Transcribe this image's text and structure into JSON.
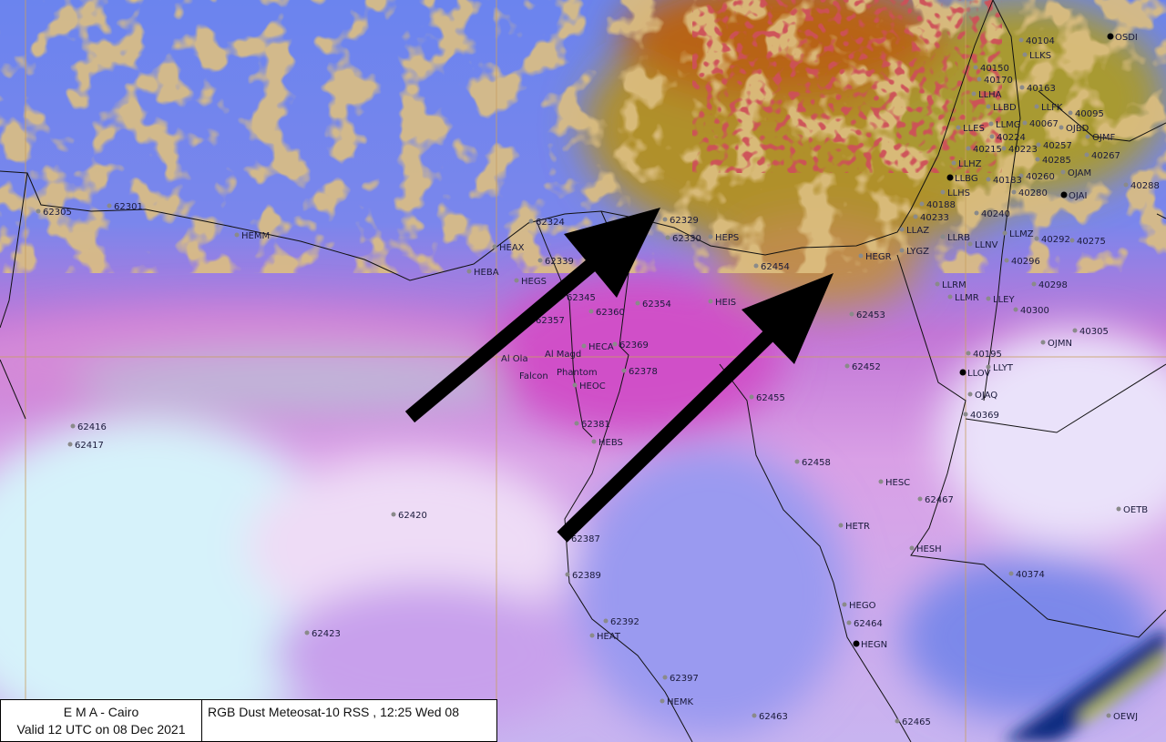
{
  "image": {
    "product_title": "RGB Dust Meteosat-10 RSS , 12:25  Wed 08",
    "issuer": "E M A  -  Cairo",
    "valid_time": "Valid 12 UTC on 08 Dec 2021"
  },
  "colors": {
    "clear_sky_blue": "#6f86ee",
    "dust_magenta": "#d873d8",
    "cloud_orange": "#b8863a",
    "thick_cloud_red": "#a01818",
    "desert_light": "#d8e8f8",
    "arrow": "#000000",
    "gridline": "#c8a060"
  },
  "annotations": [
    {
      "type": "arrow",
      "meaning": "dust flow direction"
    },
    {
      "type": "arrow",
      "meaning": "dust flow direction"
    }
  ],
  "stations": [
    {
      "label": "62305",
      "marker": "gray-dot"
    },
    {
      "label": "62301",
      "marker": "gray-dot"
    },
    {
      "label": "HEMM",
      "marker": "gray-dot"
    },
    {
      "label": "HEAX",
      "marker": "gray-dot"
    },
    {
      "label": "HEBA",
      "marker": "gray-dot"
    },
    {
      "label": "62324",
      "marker": "gray-dot"
    },
    {
      "label": "62329",
      "marker": "gray-dot"
    },
    {
      "label": "62330",
      "marker": "gray-dot"
    },
    {
      "label": "HEPS",
      "marker": "gray-dot"
    },
    {
      "label": "62454",
      "marker": "gray-dot"
    },
    {
      "label": "HEIS",
      "marker": "gray-dot"
    },
    {
      "label": "62339",
      "marker": "gray-dot"
    },
    {
      "label": "HEGS",
      "marker": "gray-dot"
    },
    {
      "label": "62345",
      "marker": "gray-dot"
    },
    {
      "label": "62360",
      "marker": "gray-dot"
    },
    {
      "label": "62354",
      "marker": "gray-dot"
    },
    {
      "label": "62357",
      "marker": "gray-dot"
    },
    {
      "label": "Al Ola",
      "marker": "none"
    },
    {
      "label": "Al Magd",
      "marker": "none"
    },
    {
      "label": "Falcon",
      "marker": "none"
    },
    {
      "label": "Phantom",
      "marker": "none"
    },
    {
      "label": "HEOC",
      "marker": "gray-dot"
    },
    {
      "label": "HECA",
      "marker": "gray-dot"
    },
    {
      "label": "62369",
      "marker": "gray-dot"
    },
    {
      "label": "62378",
      "marker": "gray-dot"
    },
    {
      "label": "62381",
      "marker": "gray-dot"
    },
    {
      "label": "HEBS",
      "marker": "gray-dot"
    },
    {
      "label": "62455",
      "marker": "gray-dot"
    },
    {
      "label": "62452",
      "marker": "gray-dot"
    },
    {
      "label": "62453",
      "marker": "gray-dot"
    },
    {
      "label": "HEGR",
      "marker": "gray-dot"
    },
    {
      "label": "62458",
      "marker": "gray-dot"
    },
    {
      "label": "HESC",
      "marker": "gray-dot"
    },
    {
      "label": "62467",
      "marker": "gray-dot"
    },
    {
      "label": "HETR",
      "marker": "gray-dot"
    },
    {
      "label": "HESH",
      "marker": "gray-dot"
    },
    {
      "label": "OETB",
      "marker": "gray-dot"
    },
    {
      "label": "40374",
      "marker": "gray-dot"
    },
    {
      "label": "HEGO",
      "marker": "gray-dot"
    },
    {
      "label": "62464",
      "marker": "gray-dot"
    },
    {
      "label": "HEGN",
      "marker": "black-dot"
    },
    {
      "label": "62392",
      "marker": "gray-dot"
    },
    {
      "label": "HEAT",
      "marker": "gray-dot"
    },
    {
      "label": "62397",
      "marker": "gray-dot"
    },
    {
      "label": "HEMK",
      "marker": "gray-dot"
    },
    {
      "label": "62463",
      "marker": "gray-dot"
    },
    {
      "label": "62465",
      "marker": "gray-dot"
    },
    {
      "label": "OEWJ",
      "marker": "gray-dot"
    },
    {
      "label": "62387",
      "marker": "gray-dot"
    },
    {
      "label": "62389",
      "marker": "gray-dot"
    },
    {
      "label": "62420",
      "marker": "gray-dot"
    },
    {
      "label": "62423",
      "marker": "gray-dot"
    },
    {
      "label": "62416",
      "marker": "gray-dot"
    },
    {
      "label": "62417",
      "marker": "gray-dot"
    },
    {
      "label": "40104",
      "marker": "gray-dot"
    },
    {
      "label": "LLKS",
      "marker": "gray-dot"
    },
    {
      "label": "OSDI",
      "marker": "black-dot"
    },
    {
      "label": "40150",
      "marker": "gray-dot"
    },
    {
      "label": "40163",
      "marker": "gray-dot"
    },
    {
      "label": "LLHA",
      "marker": "gray-dot"
    },
    {
      "label": "LLFK",
      "marker": "gray-dot"
    },
    {
      "label": "40170",
      "marker": "gray-dot"
    },
    {
      "label": "LLBD",
      "marker": "gray-dot"
    },
    {
      "label": "LLMG",
      "marker": "gray-dot"
    },
    {
      "label": "40067",
      "marker": "gray-dot"
    },
    {
      "label": "40095",
      "marker": "gray-dot"
    },
    {
      "label": "OJBD",
      "marker": "gray-dot"
    },
    {
      "label": "40224",
      "marker": "gray-dot"
    },
    {
      "label": "40215",
      "marker": "gray-dot"
    },
    {
      "label": "LLES",
      "marker": "gray-dot"
    },
    {
      "label": "40257",
      "marker": "gray-dot"
    },
    {
      "label": "OJMF",
      "marker": "gray-dot"
    },
    {
      "label": "40223",
      "marker": "gray-dot"
    },
    {
      "label": "40285",
      "marker": "gray-dot"
    },
    {
      "label": "LLHZ",
      "marker": "gray-dot"
    },
    {
      "label": "40267",
      "marker": "gray-dot"
    },
    {
      "label": "LLBG",
      "marker": "black-dot"
    },
    {
      "label": "OJAM",
      "marker": "gray-dot"
    },
    {
      "label": "40260",
      "marker": "gray-dot"
    },
    {
      "label": "40280",
      "marker": "gray-dot"
    },
    {
      "label": "40183",
      "marker": "gray-dot"
    },
    {
      "label": "LLHS",
      "marker": "gray-dot"
    },
    {
      "label": "OJAI",
      "marker": "black-dot"
    },
    {
      "label": "40288",
      "marker": "gray-dot"
    },
    {
      "label": "40188",
      "marker": "gray-dot"
    },
    {
      "label": "40240",
      "marker": "gray-dot"
    },
    {
      "label": "40233",
      "marker": "gray-dot"
    },
    {
      "label": "LLAZ",
      "marker": "gray-dot"
    },
    {
      "label": "LLMZ",
      "marker": "gray-dot"
    },
    {
      "label": "40292",
      "marker": "gray-dot"
    },
    {
      "label": "40275",
      "marker": "gray-dot"
    },
    {
      "label": "LYGZ",
      "marker": "gray-dot"
    },
    {
      "label": "LLRB",
      "marker": "gray-dot"
    },
    {
      "label": "LLNV",
      "marker": "gray-dot"
    },
    {
      "label": "40296",
      "marker": "gray-dot"
    },
    {
      "label": "LLRM",
      "marker": "gray-dot"
    },
    {
      "label": "LLMR",
      "marker": "gray-dot"
    },
    {
      "label": "LLEY",
      "marker": "gray-dot"
    },
    {
      "label": "40298",
      "marker": "gray-dot"
    },
    {
      "label": "40300",
      "marker": "gray-dot"
    },
    {
      "label": "40305",
      "marker": "gray-dot"
    },
    {
      "label": "OJMN",
      "marker": "gray-dot"
    },
    {
      "label": "40195",
      "marker": "gray-dot"
    },
    {
      "label": "LLOV",
      "marker": "black-dot"
    },
    {
      "label": "LLYT",
      "marker": "gray-dot"
    },
    {
      "label": "OJAQ",
      "marker": "gray-dot"
    },
    {
      "label": "40369",
      "marker": "gray-dot"
    }
  ]
}
